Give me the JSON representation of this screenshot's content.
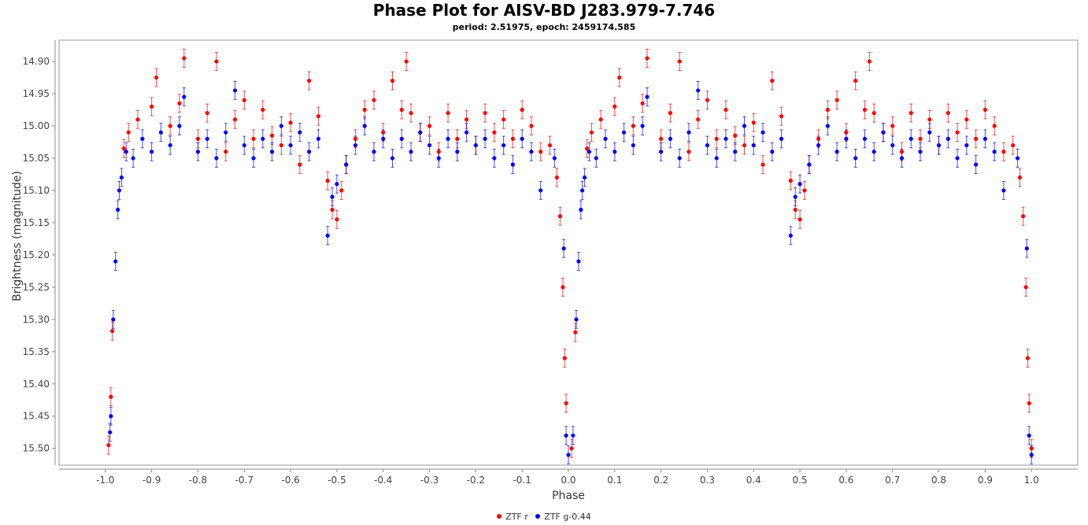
{
  "chart_data": {
    "type": "scatter",
    "title": "Phase Plot for AISV-BD J283.979-7.746",
    "subtitle": "period: 2.51975, epoch: 2459174.585",
    "xlabel": "Phase",
    "ylabel": "Brightness (magnitude)",
    "xlim": [
      -1.1,
      1.1
    ],
    "ylim": [
      14.867,
      15.526
    ],
    "y_inverted": true,
    "x_ticks": [
      "-1.0",
      "-0.9",
      "-0.8",
      "-0.7",
      "-0.6",
      "-0.5",
      "-0.4",
      "-0.3",
      "-0.2",
      "-0.1",
      "0.0",
      "0.1",
      "0.2",
      "0.3",
      "0.4",
      "0.5",
      "0.6",
      "0.7",
      "0.8",
      "0.9",
      "1.0"
    ],
    "y_ticks": [
      "14.90",
      "14.95",
      "15.00",
      "15.05",
      "15.10",
      "15.15",
      "15.20",
      "15.25",
      "15.30",
      "15.35",
      "15.40",
      "15.45",
      "15.50"
    ],
    "grid": false,
    "legend_position": "bottom",
    "error_bars": true,
    "series": [
      {
        "name": "ZTF r",
        "color": "#ff0000",
        "points": [
          [
            -0.993,
            15.495
          ],
          [
            -0.988,
            15.42
          ],
          [
            -0.985,
            15.318
          ],
          [
            -0.96,
            15.035
          ],
          [
            -0.95,
            15.01
          ],
          [
            -0.93,
            14.99
          ],
          [
            -0.9,
            14.97
          ],
          [
            -0.89,
            14.925
          ],
          [
            -0.86,
            15.0
          ],
          [
            -0.84,
            14.965
          ],
          [
            -0.83,
            14.895
          ],
          [
            -0.8,
            15.02
          ],
          [
            -0.78,
            14.98
          ],
          [
            -0.76,
            14.9
          ],
          [
            -0.74,
            15.04
          ],
          [
            -0.72,
            14.99
          ],
          [
            -0.7,
            14.96
          ],
          [
            -0.68,
            15.02
          ],
          [
            -0.66,
            14.975
          ],
          [
            -0.64,
            15.015
          ],
          [
            -0.62,
            15.03
          ],
          [
            -0.6,
            14.995
          ],
          [
            -0.58,
            15.06
          ],
          [
            -0.56,
            14.93
          ],
          [
            -0.54,
            14.985
          ],
          [
            -0.52,
            15.085
          ],
          [
            -0.51,
            15.13
          ],
          [
            -0.5,
            15.145
          ],
          [
            -0.49,
            15.1
          ],
          [
            -0.48,
            15.06
          ],
          [
            -0.46,
            15.02
          ],
          [
            -0.44,
            14.975
          ],
          [
            -0.42,
            14.96
          ],
          [
            -0.4,
            15.01
          ],
          [
            -0.38,
            14.93
          ],
          [
            -0.36,
            14.975
          ],
          [
            -0.35,
            14.9
          ],
          [
            -0.34,
            14.98
          ],
          [
            -0.32,
            15.01
          ],
          [
            -0.3,
            15.0
          ],
          [
            -0.28,
            15.04
          ],
          [
            -0.26,
            14.98
          ],
          [
            -0.24,
            15.02
          ],
          [
            -0.22,
            14.99
          ],
          [
            -0.2,
            15.03
          ],
          [
            -0.18,
            14.98
          ],
          [
            -0.16,
            15.01
          ],
          [
            -0.14,
            14.99
          ],
          [
            -0.12,
            15.02
          ],
          [
            -0.1,
            14.975
          ],
          [
            -0.08,
            15.0
          ],
          [
            -0.06,
            15.04
          ],
          [
            -0.04,
            15.03
          ],
          [
            -0.025,
            15.08
          ],
          [
            -0.018,
            15.14
          ],
          [
            -0.012,
            15.25
          ],
          [
            -0.008,
            15.36
          ],
          [
            -0.005,
            15.43
          ],
          [
            0.007,
            15.5
          ],
          [
            0.015,
            15.32
          ],
          [
            0.04,
            15.035
          ],
          [
            0.05,
            15.01
          ],
          [
            0.07,
            14.99
          ],
          [
            0.1,
            14.97
          ],
          [
            0.11,
            14.925
          ],
          [
            0.14,
            15.0
          ],
          [
            0.16,
            14.965
          ],
          [
            0.17,
            14.895
          ],
          [
            0.2,
            15.02
          ],
          [
            0.22,
            14.98
          ],
          [
            0.24,
            14.9
          ],
          [
            0.26,
            15.04
          ],
          [
            0.28,
            14.99
          ],
          [
            0.3,
            14.96
          ],
          [
            0.32,
            15.02
          ],
          [
            0.34,
            14.975
          ],
          [
            0.36,
            15.015
          ],
          [
            0.38,
            15.03
          ],
          [
            0.4,
            14.995
          ],
          [
            0.42,
            15.06
          ],
          [
            0.44,
            14.93
          ],
          [
            0.46,
            14.985
          ],
          [
            0.48,
            15.085
          ],
          [
            0.49,
            15.13
          ],
          [
            0.5,
            15.145
          ],
          [
            0.51,
            15.1
          ],
          [
            0.52,
            15.06
          ],
          [
            0.54,
            15.02
          ],
          [
            0.56,
            14.975
          ],
          [
            0.58,
            14.96
          ],
          [
            0.6,
            15.01
          ],
          [
            0.62,
            14.93
          ],
          [
            0.64,
            14.975
          ],
          [
            0.65,
            14.9
          ],
          [
            0.66,
            14.98
          ],
          [
            0.68,
            15.01
          ],
          [
            0.7,
            15.0
          ],
          [
            0.72,
            15.04
          ],
          [
            0.74,
            14.98
          ],
          [
            0.76,
            15.02
          ],
          [
            0.78,
            14.99
          ],
          [
            0.8,
            15.03
          ],
          [
            0.82,
            14.98
          ],
          [
            0.84,
            15.01
          ],
          [
            0.86,
            14.99
          ],
          [
            0.88,
            15.02
          ],
          [
            0.9,
            14.975
          ],
          [
            0.92,
            15.0
          ],
          [
            0.94,
            15.04
          ],
          [
            0.96,
            15.03
          ],
          [
            0.975,
            15.08
          ],
          [
            0.982,
            15.14
          ],
          [
            0.988,
            15.25
          ],
          [
            0.992,
            15.36
          ],
          [
            0.995,
            15.43
          ],
          [
            1.0,
            15.5
          ]
        ]
      },
      {
        "name": "ZTF g-0.44",
        "color": "#0000ff",
        "points": [
          [
            -0.99,
            15.475
          ],
          [
            -0.988,
            15.45
          ],
          [
            -0.983,
            15.3
          ],
          [
            -0.978,
            15.21
          ],
          [
            -0.973,
            15.13
          ],
          [
            -0.97,
            15.1
          ],
          [
            -0.965,
            15.08
          ],
          [
            -0.955,
            15.04
          ],
          [
            -0.94,
            15.05
          ],
          [
            -0.92,
            15.02
          ],
          [
            -0.9,
            15.04
          ],
          [
            -0.88,
            15.01
          ],
          [
            -0.86,
            15.03
          ],
          [
            -0.84,
            15.0
          ],
          [
            -0.83,
            14.955
          ],
          [
            -0.8,
            15.04
          ],
          [
            -0.78,
            15.02
          ],
          [
            -0.76,
            15.05
          ],
          [
            -0.74,
            15.01
          ],
          [
            -0.72,
            14.945
          ],
          [
            -0.7,
            15.03
          ],
          [
            -0.68,
            15.05
          ],
          [
            -0.66,
            15.02
          ],
          [
            -0.64,
            15.04
          ],
          [
            -0.62,
            15.0
          ],
          [
            -0.6,
            15.03
          ],
          [
            -0.58,
            15.01
          ],
          [
            -0.56,
            15.04
          ],
          [
            -0.54,
            15.02
          ],
          [
            -0.52,
            15.17
          ],
          [
            -0.51,
            15.11
          ],
          [
            -0.5,
            15.09
          ],
          [
            -0.48,
            15.06
          ],
          [
            -0.46,
            15.03
          ],
          [
            -0.44,
            15.0
          ],
          [
            -0.42,
            15.04
          ],
          [
            -0.4,
            15.02
          ],
          [
            -0.38,
            15.05
          ],
          [
            -0.36,
            15.02
          ],
          [
            -0.34,
            15.04
          ],
          [
            -0.32,
            15.01
          ],
          [
            -0.3,
            15.03
          ],
          [
            -0.28,
            15.05
          ],
          [
            -0.26,
            15.02
          ],
          [
            -0.24,
            15.04
          ],
          [
            -0.22,
            15.01
          ],
          [
            -0.2,
            15.03
          ],
          [
            -0.18,
            15.02
          ],
          [
            -0.16,
            15.05
          ],
          [
            -0.14,
            15.03
          ],
          [
            -0.12,
            15.06
          ],
          [
            -0.1,
            15.02
          ],
          [
            -0.08,
            15.04
          ],
          [
            -0.06,
            15.1
          ],
          [
            -0.03,
            15.05
          ],
          [
            -0.01,
            15.19
          ],
          [
            -0.005,
            15.48
          ],
          [
            0.0,
            15.51
          ],
          [
            0.01,
            15.48
          ],
          [
            0.017,
            15.3
          ],
          [
            0.022,
            15.21
          ],
          [
            0.027,
            15.13
          ],
          [
            0.03,
            15.1
          ],
          [
            0.035,
            15.08
          ],
          [
            0.045,
            15.04
          ],
          [
            0.06,
            15.05
          ],
          [
            0.08,
            15.02
          ],
          [
            0.1,
            15.04
          ],
          [
            0.12,
            15.01
          ],
          [
            0.14,
            15.03
          ],
          [
            0.16,
            15.0
          ],
          [
            0.17,
            14.955
          ],
          [
            0.2,
            15.04
          ],
          [
            0.22,
            15.02
          ],
          [
            0.24,
            15.05
          ],
          [
            0.26,
            15.01
          ],
          [
            0.28,
            14.945
          ],
          [
            0.3,
            15.03
          ],
          [
            0.32,
            15.05
          ],
          [
            0.34,
            15.02
          ],
          [
            0.36,
            15.04
          ],
          [
            0.38,
            15.0
          ],
          [
            0.4,
            15.03
          ],
          [
            0.42,
            15.01
          ],
          [
            0.44,
            15.04
          ],
          [
            0.46,
            15.02
          ],
          [
            0.48,
            15.17
          ],
          [
            0.49,
            15.11
          ],
          [
            0.5,
            15.09
          ],
          [
            0.52,
            15.06
          ],
          [
            0.54,
            15.03
          ],
          [
            0.56,
            15.0
          ],
          [
            0.58,
            15.04
          ],
          [
            0.6,
            15.02
          ],
          [
            0.62,
            15.05
          ],
          [
            0.64,
            15.02
          ],
          [
            0.66,
            15.04
          ],
          [
            0.68,
            15.01
          ],
          [
            0.7,
            15.03
          ],
          [
            0.72,
            15.05
          ],
          [
            0.74,
            15.02
          ],
          [
            0.76,
            15.04
          ],
          [
            0.78,
            15.01
          ],
          [
            0.8,
            15.03
          ],
          [
            0.82,
            15.02
          ],
          [
            0.84,
            15.05
          ],
          [
            0.86,
            15.03
          ],
          [
            0.88,
            15.06
          ],
          [
            0.9,
            15.02
          ],
          [
            0.92,
            15.04
          ],
          [
            0.94,
            15.1
          ],
          [
            0.97,
            15.05
          ],
          [
            0.99,
            15.19
          ],
          [
            0.995,
            15.48
          ],
          [
            1.0,
            15.51
          ]
        ]
      }
    ]
  }
}
